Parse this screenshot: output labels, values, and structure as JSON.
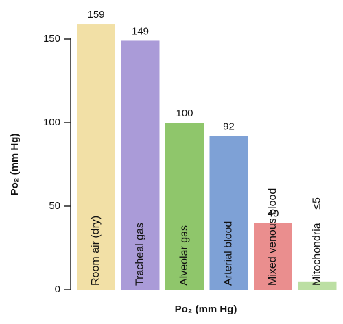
{
  "chart_data": {
    "type": "bar",
    "ylabel": "Po₂ (mm Hg)",
    "xlabel": "Po₂ (mm Hg)",
    "categories": [
      "Room air (dry)",
      "Tracheal gas",
      "Alveolar gas",
      "Arterial blood",
      "Mixed venous blood",
      "Mitochondria"
    ],
    "values": [
      159,
      149,
      100,
      92,
      40,
      5
    ],
    "value_labels": [
      "159",
      "149",
      "100",
      "92",
      "40",
      "≤5"
    ],
    "colors": [
      "#f2e0a6",
      "#aa9bd8",
      "#8fc66b",
      "#7ea1d6",
      "#ea8e8e",
      "#bcdfa3"
    ],
    "ylim": [
      0,
      150
    ],
    "yticks": [
      0,
      50,
      100,
      150
    ]
  }
}
